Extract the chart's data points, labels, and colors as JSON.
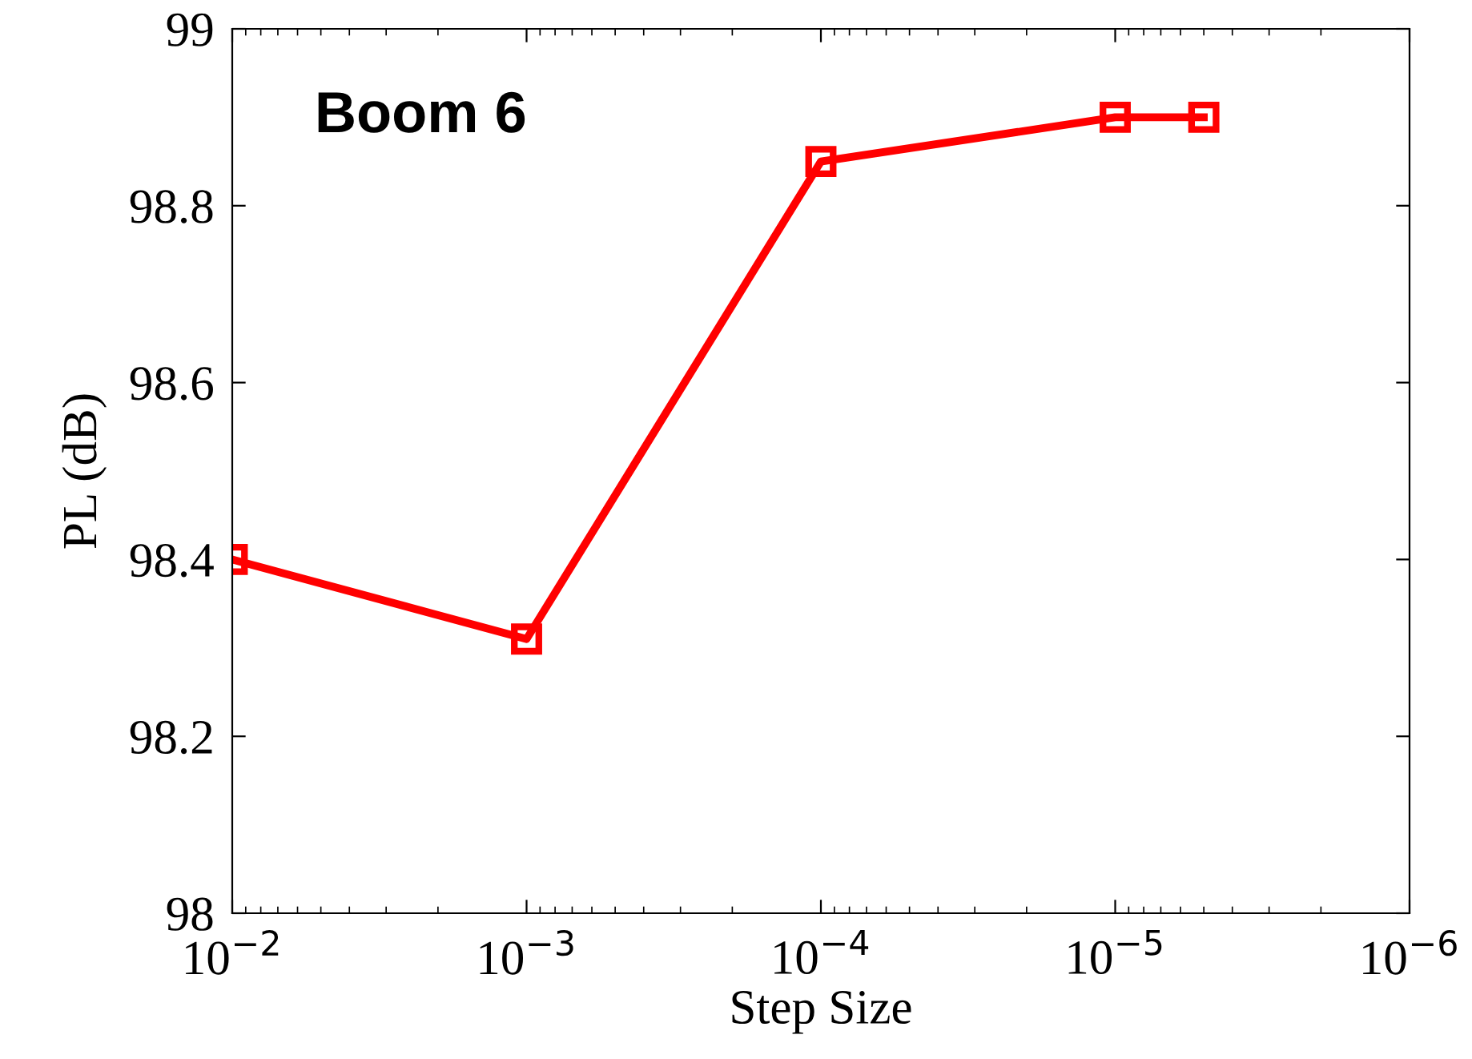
{
  "chart_data": {
    "type": "line",
    "xlabel": "Step Size",
    "ylabel": "PL (dB)",
    "annotations": [
      "Boom 6"
    ],
    "x": [
      0.01,
      0.001,
      0.0001,
      1e-05,
      5e-06
    ],
    "series": [
      {
        "color": "#ff0000",
        "values": [
          98.4,
          98.31,
          98.85,
          98.9,
          98.9
        ]
      }
    ],
    "log": "x",
    "marker": "square",
    "line_style": "solid",
    "grid": false,
    "legend": false,
    "xlim": [
      0.01,
      1e-06
    ],
    "xticks": [
      {
        "value": 0.01,
        "label": "10$^{−2}$"
      },
      {
        "value": 0.001,
        "label": "10$^{−3}$"
      },
      {
        "value": 0.0001,
        "label": "10$^{−4}$"
      },
      {
        "value": 1e-05,
        "label": "10$^{−5}$"
      },
      {
        "value": 1e-06,
        "label": "10$^{−6}$"
      }
    ],
    "ylim": [
      98,
      99
    ],
    "yticks": [
      98,
      98.2,
      98.4,
      98.6,
      98.8,
      99
    ]
  }
}
